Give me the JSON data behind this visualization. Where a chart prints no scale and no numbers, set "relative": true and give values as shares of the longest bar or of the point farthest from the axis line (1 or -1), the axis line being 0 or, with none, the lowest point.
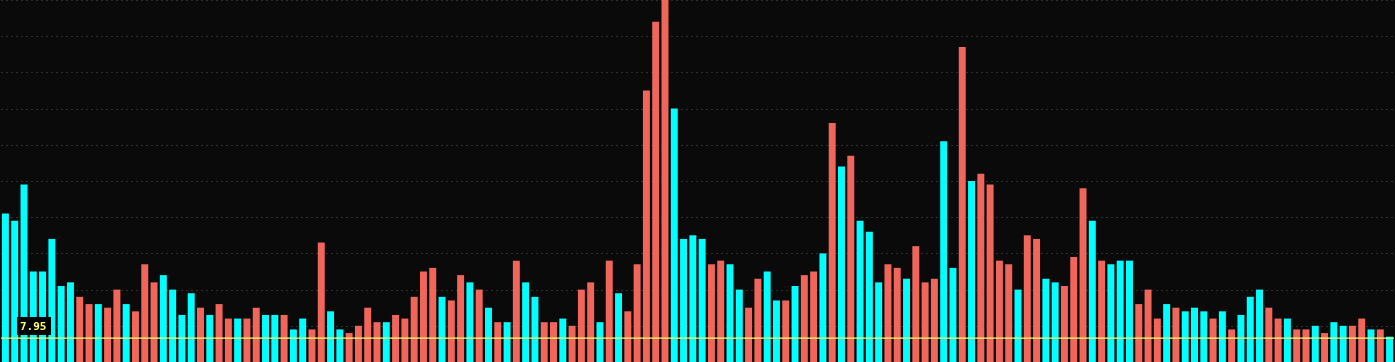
{
  "chart_data": {
    "type": "bar",
    "relative": true,
    "grid": "y",
    "tick_labels": false,
    "categories": [
      null,
      null,
      null,
      null,
      null,
      null,
      null,
      null,
      null,
      null,
      null,
      null,
      null,
      null,
      null,
      null,
      null,
      null,
      null,
      null,
      null,
      null,
      null,
      null,
      null,
      null,
      null,
      null,
      null,
      null,
      null,
      null,
      null,
      null,
      null,
      null,
      null,
      null,
      null,
      null,
      null,
      null,
      null,
      null,
      null,
      null,
      null,
      null,
      null,
      null,
      null,
      null,
      null,
      null,
      null,
      null,
      null,
      null,
      null,
      null,
      null,
      null,
      null,
      null,
      null,
      null,
      null,
      null,
      null,
      null,
      null,
      null,
      null,
      null,
      null,
      null,
      null,
      null,
      null,
      null,
      null,
      null,
      null,
      null,
      null,
      null,
      null,
      null,
      null,
      null,
      null,
      null,
      null,
      null,
      null,
      null,
      null,
      null,
      null,
      null,
      null,
      null,
      null,
      null,
      null,
      null,
      null,
      null,
      null,
      null,
      null,
      null,
      null,
      null,
      null,
      null,
      null,
      null,
      null,
      null,
      null,
      null,
      null,
      null,
      null,
      null,
      null,
      null,
      null,
      null,
      null,
      null,
      null,
      null,
      null,
      null,
      null,
      null,
      null,
      null,
      null,
      null,
      null,
      null,
      null,
      null,
      null,
      null,
      null,
      null
    ],
    "values": [
      0.41,
      0.39,
      0.49,
      0.25,
      0.25,
      0.34,
      0.21,
      0.22,
      0.18,
      0.16,
      0.16,
      0.15,
      0.2,
      0.16,
      0.14,
      0.27,
      0.22,
      0.24,
      0.2,
      0.13,
      0.19,
      0.15,
      0.13,
      0.16,
      0.12,
      0.12,
      0.12,
      0.15,
      0.13,
      0.13,
      0.13,
      0.09,
      0.12,
      0.09,
      0.33,
      0.14,
      0.09,
      0.08,
      0.1,
      0.15,
      0.11,
      0.11,
      0.13,
      0.12,
      0.18,
      0.25,
      0.26,
      0.18,
      0.17,
      0.24,
      0.22,
      0.2,
      0.15,
      0.11,
      0.11,
      0.28,
      0.22,
      0.18,
      0.11,
      0.11,
      0.12,
      0.1,
      0.2,
      0.22,
      0.11,
      0.28,
      0.19,
      0.14,
      0.27,
      0.75,
      0.94,
      1,
      0.7,
      0.34,
      0.35,
      0.34,
      0.27,
      0.28,
      0.27,
      0.2,
      0.15,
      0.23,
      0.25,
      0.17,
      0.17,
      0.21,
      0.24,
      0.25,
      0.3,
      0.66,
      0.54,
      0.57,
      0.39,
      0.36,
      0.22,
      0.27,
      0.26,
      0.23,
      0.32,
      0.22,
      0.23,
      0.61,
      0.26,
      0.87,
      0.5,
      0.52,
      0.49,
      0.28,
      0.27,
      0.2,
      0.35,
      0.34,
      0.23,
      0.22,
      0.21,
      0.29,
      0.48,
      0.39,
      0.28,
      0.27,
      0.28,
      0.28,
      0.16,
      0.2,
      0.12,
      0.16,
      0.15,
      0.14,
      0.15,
      0.14,
      0.12,
      0.14,
      0.09,
      0.13,
      0.18,
      0.2,
      0.15,
      0.12,
      0.12,
      0.09,
      0.09,
      0.1,
      0.08,
      0.11,
      0.1,
      0.1,
      0.12,
      0.09,
      0.09,
      0.07
    ],
    "colors": [
      "#00ffff",
      "#00ffff",
      "#00ffff",
      "#00ffff",
      "#00ffff",
      "#00ffff",
      "#00ffff",
      "#00ffff",
      "#f0665a",
      "#f0665a",
      "#00ffff",
      "#f0665a",
      "#f0665a",
      "#00ffff",
      "#f0665a",
      "#f0665a",
      "#f0665a",
      "#00ffff",
      "#00ffff",
      "#00ffff",
      "#00ffff",
      "#f0665a",
      "#00ffff",
      "#f0665a",
      "#f0665a",
      "#00ffff",
      "#f0665a",
      "#f0665a",
      "#00ffff",
      "#00ffff",
      "#f0665a",
      "#00ffff",
      "#00ffff",
      "#f0665a",
      "#f0665a",
      "#00ffff",
      "#00ffff",
      "#f0665a",
      "#f0665a",
      "#f0665a",
      "#f0665a",
      "#00ffff",
      "#f0665a",
      "#f0665a",
      "#f0665a",
      "#f0665a",
      "#f0665a",
      "#00ffff",
      "#f0665a",
      "#f0665a",
      "#00ffff",
      "#f0665a",
      "#00ffff",
      "#f0665a",
      "#00ffff",
      "#f0665a",
      "#00ffff",
      "#00ffff",
      "#f0665a",
      "#f0665a",
      "#00ffff",
      "#f0665a",
      "#f0665a",
      "#f0665a",
      "#00ffff",
      "#f0665a",
      "#00ffff",
      "#f0665a",
      "#f0665a",
      "#f0665a",
      "#f0665a",
      "#f0665a",
      "#00ffff",
      "#00ffff",
      "#00ffff",
      "#00ffff",
      "#f0665a",
      "#f0665a",
      "#00ffff",
      "#00ffff",
      "#f0665a",
      "#f0665a",
      "#00ffff",
      "#00ffff",
      "#f0665a",
      "#00ffff",
      "#f0665a",
      "#f0665a",
      "#00ffff",
      "#f0665a",
      "#00ffff",
      "#f0665a",
      "#00ffff",
      "#00ffff",
      "#00ffff",
      "#f0665a",
      "#f0665a",
      "#00ffff",
      "#f0665a",
      "#f0665a",
      "#f0665a",
      "#00ffff",
      "#00ffff",
      "#f0665a",
      "#00ffff",
      "#f0665a",
      "#f0665a",
      "#f0665a",
      "#f0665a",
      "#00ffff",
      "#f0665a",
      "#f0665a",
      "#00ffff",
      "#00ffff",
      "#f0665a",
      "#f0665a",
      "#f0665a",
      "#00ffff",
      "#f0665a",
      "#00ffff",
      "#00ffff",
      "#00ffff",
      "#f0665a",
      "#f0665a",
      "#f0665a",
      "#00ffff",
      "#f0665a",
      "#00ffff",
      "#00ffff",
      "#00ffff",
      "#f0665a",
      "#00ffff",
      "#f0665a",
      "#00ffff",
      "#00ffff",
      "#00ffff",
      "#f0665a",
      "#f0665a",
      "#00ffff",
      "#f0665a",
      "#f0665a",
      "#00ffff",
      "#f0665a",
      "#00ffff",
      "#00ffff",
      "#f0665a",
      "#f0665a",
      "#00ffff",
      "#f0665a",
      "#00ffff"
    ],
    "ref_lines": [
      {
        "axis": "y",
        "value": 0.066,
        "color": "#ffff66"
      }
    ],
    "annotations": [
      "7.95"
    ]
  }
}
